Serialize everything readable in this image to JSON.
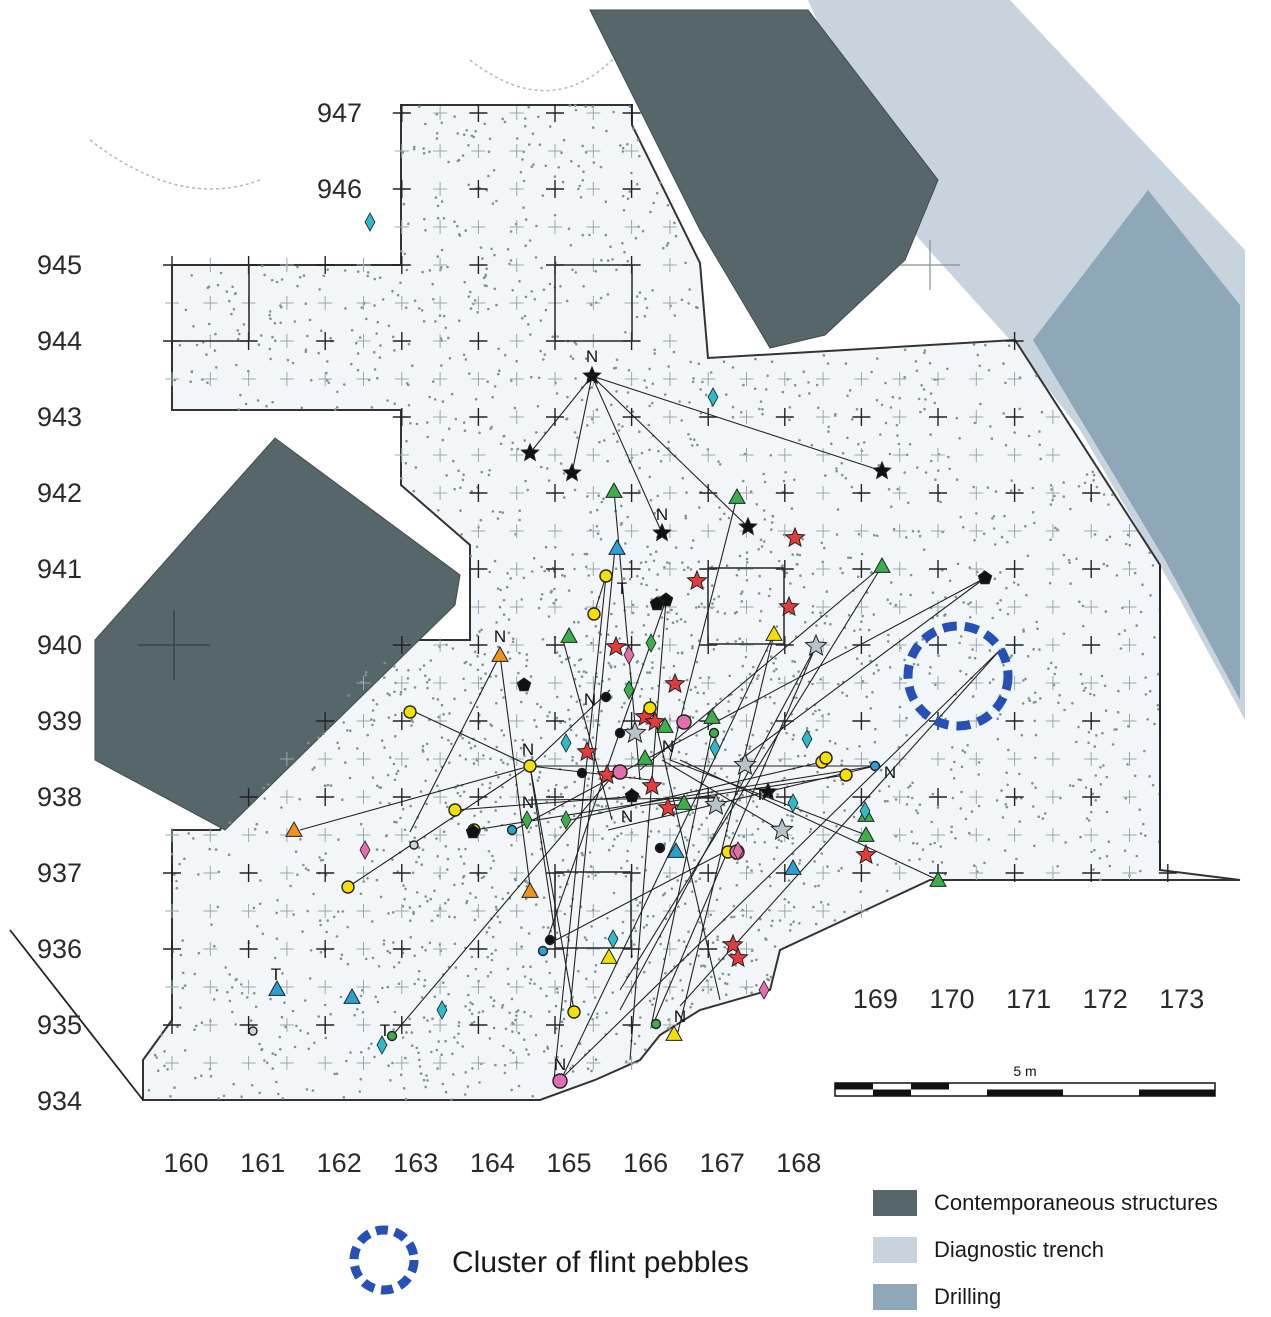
{
  "map": {
    "y_labels": [
      "947",
      "946",
      "945",
      "944",
      "943",
      "942",
      "941",
      "940",
      "939",
      "938",
      "937",
      "936",
      "935",
      "934"
    ],
    "x_labels": [
      "160",
      "161",
      "162",
      "163",
      "164",
      "165",
      "166",
      "167",
      "168"
    ],
    "x_labels_right": [
      "169",
      "170",
      "171",
      "172",
      "173"
    ],
    "scale_label": "5 m",
    "orientation_letters": [
      "N",
      "N",
      "N",
      "N",
      "N",
      "N",
      "N",
      "N",
      "N",
      "N",
      "N"
    ],
    "tool_letters": [
      "T",
      "T",
      "T",
      "T"
    ]
  },
  "legend": {
    "cluster_label": "Cluster of flint pebbles",
    "items": [
      {
        "label": "Contemporaneous structures",
        "color": "#56666a"
      },
      {
        "label": "Diagnostic trench",
        "color": "#c7d4de"
      },
      {
        "label": "Drilling",
        "color": "#8fa8b9"
      }
    ]
  },
  "colors": {
    "structure": "#56666a",
    "trench": "#c7d4de",
    "drilling": "#8fa8b9",
    "excavation": "#f3f6f8",
    "cluster_ring": "#2650b5",
    "star_red": "#e23b3b",
    "star_black": "#111111",
    "star_grey": "#b8c4cc",
    "triangle_green": "#3cae4a",
    "triangle_blue": "#2aa0d8",
    "triangle_orange": "#f0921e",
    "triangle_yellow": "#f5e000",
    "circle_yellow": "#f5e000",
    "circle_pink": "#e46db0",
    "circle_black": "#111111",
    "diamond_teal": "#2fb9c9",
    "diamond_green": "#3cae4a",
    "diamond_pink": "#e46db0",
    "pentagon_black": "#111111"
  }
}
